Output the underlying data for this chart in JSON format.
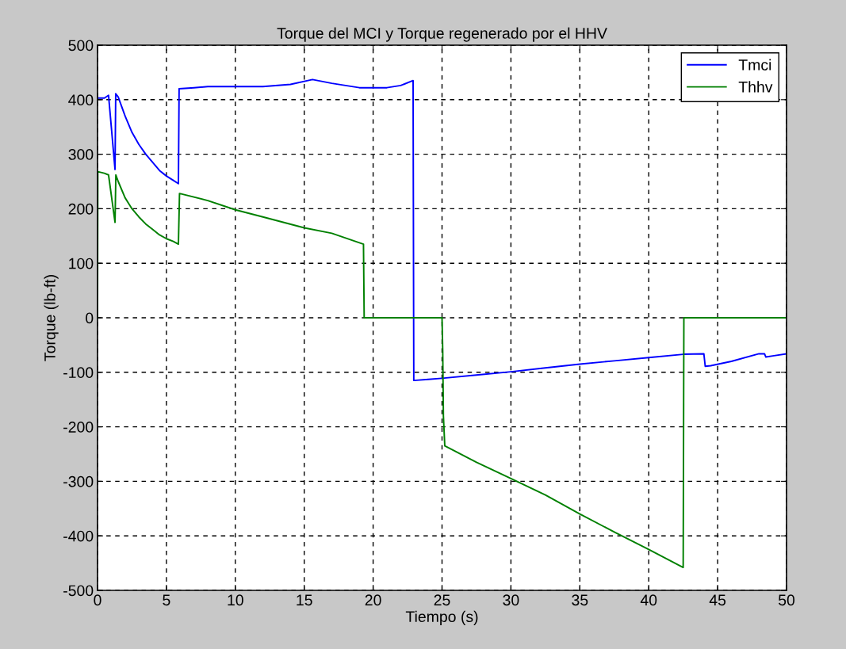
{
  "chart_data": {
    "type": "line",
    "title": "Torque del MCI y Torque regenerado por el HHV",
    "xlabel": "Tiempo (s)",
    "ylabel": "Torque (lb-ft)",
    "xlim": [
      0,
      50
    ],
    "ylim": [
      -500,
      500
    ],
    "xticks": [
      0,
      5,
      10,
      15,
      20,
      25,
      30,
      35,
      40,
      45,
      50
    ],
    "yticks": [
      -500,
      -400,
      -300,
      -200,
      -100,
      0,
      100,
      200,
      300,
      400,
      500
    ],
    "grid": true,
    "legend": "top right",
    "line_style": "solid",
    "marker": "none",
    "series": [
      {
        "name": "Tmci",
        "color": "#0000ff",
        "x": [
          0,
          0.5,
          0.8,
          1.0,
          1.27,
          1.32,
          1.5,
          2,
          2.5,
          3,
          3.5,
          4,
          4.5,
          5,
          5.5,
          5.87,
          5.92,
          7,
          8,
          10,
          12,
          14,
          15.6,
          17,
          19,
          21,
          22,
          22.9,
          22.95,
          24,
          25,
          27.5,
          30,
          32.5,
          35,
          37.5,
          40,
          42.5,
          44,
          44.1,
          44.5,
          46,
          48,
          48.4,
          48.5,
          49,
          50
        ],
        "values": [
          403,
          403,
          408,
          350,
          272,
          411,
          405,
          370,
          340,
          318,
          300,
          285,
          270,
          260,
          252,
          246,
          420,
          422,
          424,
          424,
          424,
          428,
          437,
          430,
          422,
          422,
          426,
          435,
          -115,
          -113,
          -111,
          -105,
          -99,
          -92,
          -85,
          -79,
          -73,
          -67,
          -66,
          -89,
          -88,
          -80,
          -66,
          -66,
          -72,
          -70,
          -66
        ]
      },
      {
        "name": "Thhv",
        "color": "#008000",
        "x": [
          0,
          0.02,
          0.5,
          0.8,
          1.27,
          1.33,
          1.5,
          2,
          2.5,
          3,
          3.5,
          4,
          4.5,
          5,
          5.5,
          5.87,
          5.95,
          8,
          10,
          12,
          15,
          17,
          19.3,
          19.35,
          25.0,
          25.05,
          25.1,
          25.2,
          27.5,
          30,
          32.5,
          35,
          37.5,
          40,
          42.5,
          42.55,
          50
        ],
        "values": [
          0,
          268,
          265,
          262,
          175,
          262,
          250,
          220,
          200,
          185,
          172,
          162,
          152,
          145,
          140,
          135,
          228,
          215,
          198,
          185,
          165,
          155,
          135,
          0,
          0,
          -60,
          -180,
          -235,
          -265,
          -295,
          -325,
          -360,
          -393,
          -425,
          -458,
          0,
          0
        ]
      }
    ]
  }
}
